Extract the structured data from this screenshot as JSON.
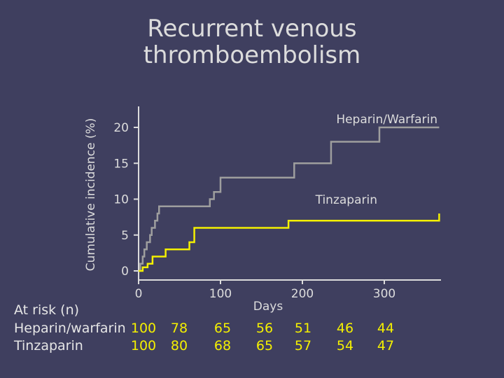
{
  "title_line1": "Recurrent venous",
  "title_line2": "thromboembolism",
  "chart_data": {
    "type": "line",
    "step": true,
    "xlabel": "Days",
    "ylabel": "Cumulative incidence (%)",
    "xlim": [
      0,
      370
    ],
    "ylim": [
      -2,
      23
    ],
    "xticks": [
      0,
      100,
      200,
      300
    ],
    "yticks": [
      0,
      5,
      10,
      15,
      20
    ],
    "grid": false,
    "series": [
      {
        "name": "Heparin/Warfarin",
        "color": "#9e9e9e",
        "x": [
          0,
          2,
          5,
          7,
          10,
          14,
          16,
          20,
          23,
          25,
          27,
          83,
          87,
          92,
          100,
          174,
          190,
          232,
          235,
          260,
          264,
          290,
          294,
          367
        ],
        "y": [
          0,
          1,
          2,
          3,
          4,
          5,
          6,
          7,
          8,
          9,
          9,
          9,
          10,
          11,
          13,
          13,
          15,
          15,
          18,
          18,
          18,
          18,
          20,
          20
        ]
      },
      {
        "name": "Tinzaparin",
        "color": "#f4f000",
        "x": [
          0,
          5,
          11,
          17,
          33,
          62,
          68,
          143,
          183,
          367
        ],
        "y": [
          0,
          0.5,
          1,
          2,
          3,
          4,
          6,
          6,
          7,
          8
        ]
      }
    ],
    "legend": [
      {
        "label": "Heparin/Warfarin",
        "placement": "top-right"
      },
      {
        "label": "Tinzaparin",
        "placement": "right"
      }
    ]
  },
  "at_risk": {
    "heading": "At risk (n)",
    "rows": [
      {
        "label": "Heparin/warfarin",
        "values": [
          "100",
          "78",
          "65",
          "56",
          "51",
          "46",
          "44"
        ]
      },
      {
        "label": "Tinzaparin",
        "values": [
          "100",
          "80",
          "68",
          "65",
          "57",
          "54",
          "47"
        ]
      }
    ]
  }
}
